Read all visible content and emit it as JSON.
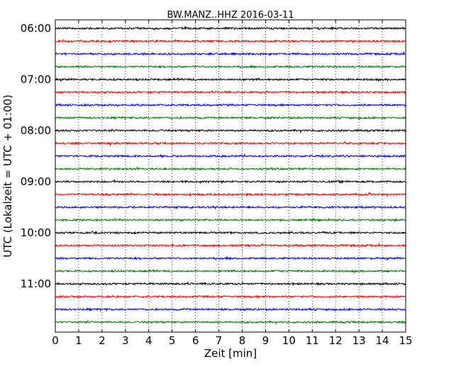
{
  "chart_data": {
    "type": "line",
    "title": "BW.MANZ..HHZ 2016-03-11",
    "xlabel": "Zeit  [min]",
    "ylabel": "UTC (Lokalzeit = UTC + 01:00)",
    "xlim": [
      0,
      15
    ],
    "x_ticks": [
      "0",
      "1",
      "2",
      "3",
      "4",
      "5",
      "6",
      "7",
      "8",
      "9",
      "10",
      "11",
      "12",
      "13",
      "14",
      "15"
    ],
    "y_tick_labels": [
      "06:00",
      "07:00",
      "08:00",
      "09:00",
      "10:00",
      "11:00"
    ],
    "grid": "vertical-dotted",
    "trace_interval_minutes": 15,
    "series_colors": [
      "#000000",
      "#ff0000",
      "#0000ff",
      "#008000"
    ],
    "traces": [
      {
        "start": "06:00",
        "color": "#000000"
      },
      {
        "start": "06:15",
        "color": "#ff0000"
      },
      {
        "start": "06:30",
        "color": "#0000ff"
      },
      {
        "start": "06:45",
        "color": "#008000"
      },
      {
        "start": "07:00",
        "color": "#000000"
      },
      {
        "start": "07:15",
        "color": "#ff0000"
      },
      {
        "start": "07:30",
        "color": "#0000ff"
      },
      {
        "start": "07:45",
        "color": "#008000"
      },
      {
        "start": "08:00",
        "color": "#000000"
      },
      {
        "start": "08:15",
        "color": "#ff0000"
      },
      {
        "start": "08:30",
        "color": "#0000ff"
      },
      {
        "start": "08:45",
        "color": "#008000"
      },
      {
        "start": "09:00",
        "color": "#000000"
      },
      {
        "start": "09:15",
        "color": "#ff0000"
      },
      {
        "start": "09:30",
        "color": "#0000ff"
      },
      {
        "start": "09:45",
        "color": "#008000"
      },
      {
        "start": "10:00",
        "color": "#000000"
      },
      {
        "start": "10:15",
        "color": "#ff0000"
      },
      {
        "start": "10:30",
        "color": "#0000ff"
      },
      {
        "start": "10:45",
        "color": "#008000"
      },
      {
        "start": "11:00",
        "color": "#000000"
      },
      {
        "start": "11:15",
        "color": "#ff0000"
      },
      {
        "start": "11:30",
        "color": "#0000ff"
      },
      {
        "start": "11:45",
        "color": "#008000"
      }
    ]
  }
}
